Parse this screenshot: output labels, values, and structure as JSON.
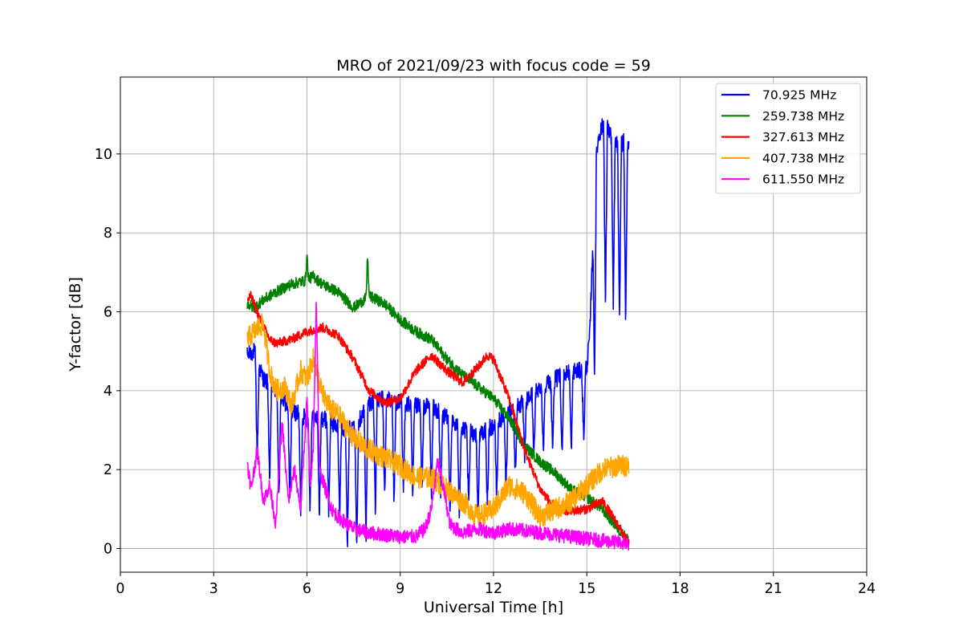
{
  "chart_data": {
    "type": "line",
    "title": "MRO of 2021/09/23 with focus code = 59",
    "xlabel": "Universal Time [h]",
    "ylabel": "Y-factor [dB]",
    "xlim": [
      0,
      24
    ],
    "ylim": [
      -0.6,
      11.95
    ],
    "xticks": [
      0,
      3,
      6,
      9,
      12,
      15,
      18,
      21,
      24
    ],
    "xtick_labels": [
      "0",
      "3",
      "6",
      "9",
      "12",
      "15",
      "18",
      "21",
      "24"
    ],
    "yticks": [
      0,
      2,
      4,
      6,
      8,
      10
    ],
    "ytick_labels": [
      "0",
      "2",
      "4",
      "6",
      "8",
      "10"
    ],
    "grid": true,
    "legend_position": "top-right",
    "series": [
      {
        "name": "70.925 MHz",
        "legend_label": " 70.925 MHz",
        "color": "#0000ff",
        "x": [
          4.08,
          4.3,
          4.6,
          5.0,
          5.5,
          6.0,
          6.5,
          7.0,
          7.5,
          8.0,
          8.5,
          9.0,
          9.5,
          10.0,
          10.5,
          11.0,
          11.5,
          12.0,
          12.5,
          13.0,
          13.5,
          14.0,
          14.5,
          14.9,
          15.0,
          15.1,
          15.2,
          15.3,
          15.4,
          15.5,
          15.6,
          15.7,
          15.8,
          16.0,
          16.2,
          16.35
        ],
        "y": [
          4.9,
          5.0,
          4.3,
          4.0,
          3.5,
          3.3,
          3.3,
          3.1,
          3.0,
          3.7,
          3.8,
          3.7,
          3.6,
          3.6,
          3.3,
          3.0,
          2.9,
          3.1,
          3.5,
          3.7,
          4.1,
          4.3,
          4.5,
          4.5,
          4.6,
          5.5,
          8.0,
          10.0,
          10.5,
          10.7,
          10.9,
          10.6,
          10.4,
          10.2,
          10.3,
          10.3
        ],
        "dips": [
          {
            "x": 4.4,
            "y": 2.2
          },
          {
            "x": 4.8,
            "y": 1.5
          },
          {
            "x": 5.1,
            "y": 1.2
          },
          {
            "x": 5.45,
            "y": 1.0
          },
          {
            "x": 5.8,
            "y": 0.9
          },
          {
            "x": 6.1,
            "y": 1.0
          },
          {
            "x": 6.4,
            "y": 0.8
          },
          {
            "x": 6.7,
            "y": 0.9
          },
          {
            "x": 7.05,
            "y": 0.7
          },
          {
            "x": 7.3,
            "y": 0.0
          },
          {
            "x": 7.6,
            "y": 0.0
          },
          {
            "x": 7.9,
            "y": 0.3
          },
          {
            "x": 8.2,
            "y": 1.0
          },
          {
            "x": 8.5,
            "y": 1.2
          },
          {
            "x": 8.8,
            "y": 1.0
          },
          {
            "x": 9.1,
            "y": 1.3
          },
          {
            "x": 9.4,
            "y": 1.2
          },
          {
            "x": 9.7,
            "y": 1.4
          },
          {
            "x": 10.0,
            "y": 1.3
          },
          {
            "x": 10.3,
            "y": 1.2
          },
          {
            "x": 10.6,
            "y": 1.0
          },
          {
            "x": 10.9,
            "y": 0.9
          },
          {
            "x": 11.2,
            "y": 1.0
          },
          {
            "x": 11.5,
            "y": 0.8
          },
          {
            "x": 11.8,
            "y": 1.0
          },
          {
            "x": 12.1,
            "y": 1.3
          },
          {
            "x": 12.4,
            "y": 1.5
          },
          {
            "x": 12.7,
            "y": 1.8
          },
          {
            "x": 13.0,
            "y": 2.2
          },
          {
            "x": 13.3,
            "y": 2.3
          },
          {
            "x": 13.6,
            "y": 2.4
          },
          {
            "x": 13.9,
            "y": 2.5
          },
          {
            "x": 14.2,
            "y": 2.3
          },
          {
            "x": 14.5,
            "y": 2.4
          },
          {
            "x": 14.9,
            "y": 2.7
          },
          {
            "x": 15.25,
            "y": 4.3
          },
          {
            "x": 15.6,
            "y": 6.0
          },
          {
            "x": 15.85,
            "y": 6.0
          },
          {
            "x": 16.05,
            "y": 5.6
          },
          {
            "x": 16.25,
            "y": 5.6
          }
        ]
      },
      {
        "name": "259.738 MHz",
        "legend_label": "259.738 MHz",
        "color": "#008000",
        "x": [
          4.08,
          4.3,
          4.6,
          5.0,
          5.5,
          6.0,
          6.2,
          6.5,
          7.0,
          7.5,
          8.0,
          8.5,
          9.0,
          9.5,
          10.0,
          10.5,
          11.0,
          11.5,
          12.0,
          12.5,
          13.0,
          13.5,
          14.0,
          14.5,
          15.0,
          15.5,
          16.0,
          16.35
        ],
        "y": [
          6.2,
          6.1,
          6.3,
          6.5,
          6.7,
          6.8,
          6.9,
          6.7,
          6.5,
          6.1,
          6.4,
          6.2,
          5.8,
          5.5,
          5.3,
          4.8,
          4.4,
          4.1,
          3.8,
          3.3,
          2.6,
          2.2,
          1.9,
          1.5,
          1.3,
          1.0,
          0.5,
          0.2
        ],
        "spikes": [
          {
            "x": 6.0,
            "y": 7.45
          },
          {
            "x": 7.95,
            "y": 7.45
          }
        ]
      },
      {
        "name": "327.613 MHz",
        "legend_label": "327.613 MHz",
        "color": "#ff0000",
        "x": [
          4.08,
          4.2,
          4.5,
          4.8,
          5.0,
          5.5,
          6.0,
          6.5,
          7.0,
          7.5,
          8.0,
          8.5,
          9.0,
          9.5,
          10.0,
          10.5,
          11.0,
          11.5,
          11.8,
          12.0,
          12.5,
          13.0,
          13.5,
          14.0,
          14.5,
          15.0,
          15.5,
          16.0,
          16.35
        ],
        "y": [
          6.3,
          6.4,
          5.8,
          5.3,
          5.2,
          5.3,
          5.5,
          5.6,
          5.4,
          4.8,
          4.0,
          3.7,
          3.8,
          4.5,
          4.9,
          4.5,
          4.2,
          4.6,
          4.9,
          4.8,
          3.8,
          2.5,
          1.5,
          1.0,
          0.95,
          1.0,
          1.2,
          0.6,
          0.1
        ]
      },
      {
        "name": "407.738 MHz",
        "legend_label": "407.738 MHz",
        "color": "#ffa500",
        "x": [
          4.08,
          4.3,
          4.6,
          4.8,
          5.0,
          5.3,
          5.5,
          5.8,
          6.0,
          6.2,
          6.5,
          6.8,
          7.0,
          7.5,
          8.0,
          8.5,
          9.0,
          9.5,
          10.0,
          10.5,
          11.0,
          11.5,
          12.0,
          12.5,
          13.0,
          13.5,
          14.0,
          14.5,
          15.0,
          15.5,
          16.0,
          16.35
        ],
        "y": [
          5.3,
          5.5,
          5.7,
          4.5,
          4.0,
          4.1,
          3.6,
          4.5,
          4.3,
          4.8,
          3.9,
          3.5,
          3.4,
          2.8,
          2.5,
          2.3,
          2.1,
          1.8,
          1.8,
          1.5,
          1.2,
          0.8,
          1.0,
          1.6,
          1.4,
          0.8,
          1.0,
          1.2,
          1.6,
          2.0,
          2.1,
          2.1
        ]
      },
      {
        "name": "611.550 MHz",
        "legend_label": "611.550 MHz",
        "color": "#ff00ff",
        "x": [
          4.08,
          4.2,
          4.4,
          4.6,
          4.8,
          5.0,
          5.1,
          5.2,
          5.4,
          5.6,
          5.8,
          6.0,
          6.1,
          6.2,
          6.3,
          6.4,
          6.6,
          6.8,
          7.0,
          7.5,
          8.0,
          8.5,
          9.0,
          9.5,
          9.8,
          10.0,
          10.2,
          10.4,
          10.6,
          11.0,
          11.5,
          12.0,
          12.5,
          13.0,
          13.5,
          14.0,
          14.5,
          15.0,
          15.5,
          16.0,
          16.35
        ],
        "y": [
          2.2,
          1.5,
          2.5,
          1.2,
          1.6,
          0.6,
          2.0,
          3.2,
          1.2,
          2.0,
          1.0,
          3.8,
          1.5,
          2.5,
          6.3,
          2.0,
          1.5,
          1.0,
          0.8,
          0.5,
          0.4,
          0.35,
          0.3,
          0.3,
          0.5,
          1.0,
          2.2,
          1.5,
          0.6,
          0.4,
          0.5,
          0.4,
          0.5,
          0.45,
          0.4,
          0.35,
          0.3,
          0.25,
          0.2,
          0.15,
          0.12
        ]
      }
    ]
  }
}
